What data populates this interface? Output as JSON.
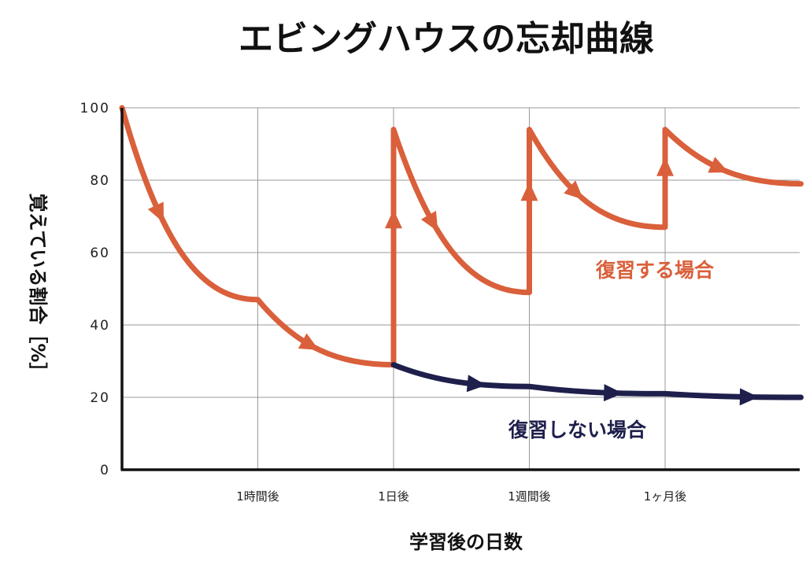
{
  "chart_data": {
    "type": "line",
    "title": "エビングハウスの忘却曲線",
    "xlabel": "学習後の日数",
    "ylabel": "覚えている割合［%］",
    "ylim": [
      0,
      100
    ],
    "yticks": [
      "0",
      "20",
      "40",
      "60",
      "80",
      "100"
    ],
    "xticks": [
      "1時間後",
      "1日後",
      "1週間後",
      "1ヶ月後"
    ],
    "grid": true,
    "legend": "inline",
    "colors": {
      "review": "#d9603b",
      "no_review": "#1e1f4b"
    },
    "series": [
      {
        "name": "復習する場合",
        "color": "#d9603b",
        "x": [
          0,
          1,
          2,
          2,
          3,
          3,
          4,
          4,
          5
        ],
        "y": [
          100,
          47,
          29,
          94,
          49,
          94,
          67,
          94,
          79
        ]
      },
      {
        "name": "復習しない場合",
        "color": "#1e1f4b",
        "x": [
          2,
          3,
          4,
          5
        ],
        "y": [
          29,
          23,
          21,
          20
        ]
      }
    ]
  }
}
